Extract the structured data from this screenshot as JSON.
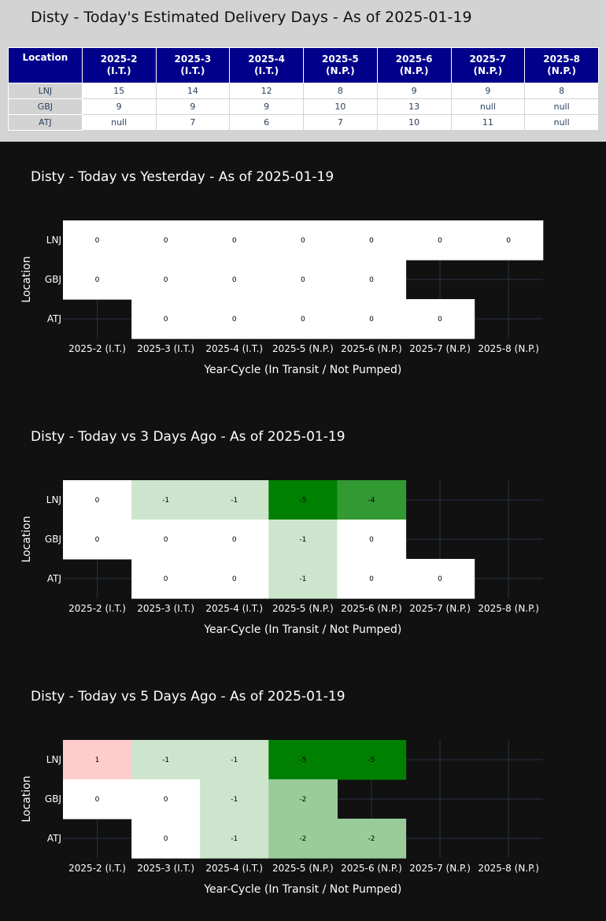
{
  "estimate_table": {
    "title": "Disty - Today's Estimated Delivery Days - As of 2025-01-19",
    "corner_header": "Location",
    "columns": [
      {
        "line1": "2025-2",
        "line2": "(I.T.)"
      },
      {
        "line1": "2025-3",
        "line2": "(I.T.)"
      },
      {
        "line1": "2025-4",
        "line2": "(I.T.)"
      },
      {
        "line1": "2025-5",
        "line2": "(N.P.)"
      },
      {
        "line1": "2025-6",
        "line2": "(N.P.)"
      },
      {
        "line1": "2025-7",
        "line2": "(N.P.)"
      },
      {
        "line1": "2025-8",
        "line2": "(N.P.)"
      }
    ],
    "rows": [
      {
        "location": "LNJ",
        "values": [
          "15",
          "14",
          "12",
          "8",
          "9",
          "9",
          "8"
        ]
      },
      {
        "location": "GBJ",
        "values": [
          "9",
          "9",
          "9",
          "10",
          "13",
          "null",
          "null"
        ]
      },
      {
        "location": "ATJ",
        "values": [
          "null",
          "7",
          "6",
          "7",
          "10",
          "11",
          "null"
        ]
      }
    ],
    "colors": {
      "header_bg": "#00008b",
      "label_bg": "#d3d3d3"
    }
  },
  "chart_data": [
    {
      "type": "heatmap",
      "title": "Disty - Today vs Yesterday - As of 2025-01-19",
      "xlabel": "Year-Cycle (In Transit / Not Pumped)",
      "ylabel": "Location",
      "x": [
        "2025-2 (I.T.)",
        "2025-3 (I.T.)",
        "2025-4 (I.T.)",
        "2025-5 (N.P.)",
        "2025-6 (N.P.)",
        "2025-7 (N.P.)",
        "2025-8 (N.P.)"
      ],
      "y": [
        "LNJ",
        "GBJ",
        "ATJ"
      ],
      "z": [
        [
          0,
          0,
          0,
          0,
          0,
          0,
          0
        ],
        [
          0,
          0,
          0,
          0,
          0,
          null,
          null
        ],
        [
          null,
          0,
          0,
          0,
          0,
          0,
          null
        ]
      ]
    },
    {
      "type": "heatmap",
      "title": "Disty - Today vs 3 Days Ago - As of 2025-01-19",
      "xlabel": "Year-Cycle (In Transit / Not Pumped)",
      "ylabel": "Location",
      "x": [
        "2025-2 (I.T.)",
        "2025-3 (I.T.)",
        "2025-4 (I.T.)",
        "2025-5 (N.P.)",
        "2025-6 (N.P.)",
        "2025-7 (N.P.)",
        "2025-8 (N.P.)"
      ],
      "y": [
        "LNJ",
        "GBJ",
        "ATJ"
      ],
      "z": [
        [
          0,
          -1,
          -1,
          -5,
          -4,
          null,
          null
        ],
        [
          0,
          0,
          0,
          -1,
          0,
          null,
          null
        ],
        [
          null,
          0,
          0,
          -1,
          0,
          0,
          null
        ]
      ]
    },
    {
      "type": "heatmap",
      "title": "Disty - Today vs 5 Days Ago - As of 2025-01-19",
      "xlabel": "Year-Cycle (In Transit / Not Pumped)",
      "ylabel": "Location",
      "x": [
        "2025-2 (I.T.)",
        "2025-3 (I.T.)",
        "2025-4 (I.T.)",
        "2025-5 (N.P.)",
        "2025-6 (N.P.)",
        "2025-7 (N.P.)",
        "2025-8 (N.P.)"
      ],
      "y": [
        "LNJ",
        "GBJ",
        "ATJ"
      ],
      "z": [
        [
          1,
          -1,
          -1,
          -5,
          -5,
          null,
          null
        ],
        [
          0,
          0,
          -1,
          -2,
          null,
          null,
          null
        ],
        [
          null,
          0,
          -1,
          -2,
          -2,
          null,
          null
        ]
      ]
    }
  ],
  "colorscale": {
    "positive": "#ffcccc",
    "zero": "#ffffff",
    "minus_1": "#cce5cc",
    "minus_2": "#99cc99",
    "minus_4": "#339933",
    "minus_5": "#008000",
    "grid": "#283442",
    "background": "#111111"
  }
}
